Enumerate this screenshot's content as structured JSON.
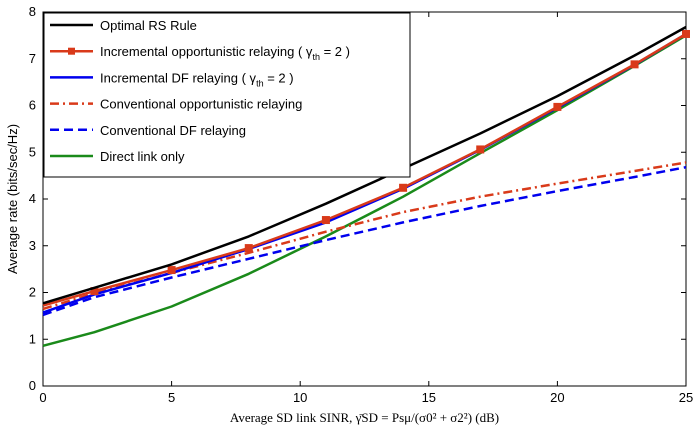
{
  "chart_data": {
    "type": "line",
    "title": "",
    "xlabel": "Average SD link SINR, γ̄SD = Psμ/(σ0² + σ2²) (dB)",
    "ylabel": "Average rate (bits/sec/Hz)",
    "xlim": [
      0,
      25
    ],
    "ylim": [
      0,
      8
    ],
    "xticks": [
      0,
      5,
      10,
      15,
      20,
      25
    ],
    "yticks": [
      0,
      1,
      2,
      3,
      4,
      5,
      6,
      7,
      8
    ],
    "grid": false,
    "legend_position": "top-left",
    "x": [
      0,
      2,
      5,
      8,
      11,
      14,
      17,
      20,
      23,
      25
    ],
    "series": [
      {
        "name": "Optimal RS Rule",
        "color": "#000000",
        "dash": "solid",
        "marker": "none",
        "values": [
          1.77,
          2.1,
          2.6,
          3.2,
          3.9,
          4.65,
          5.4,
          6.2,
          7.07,
          7.68
        ]
      },
      {
        "name": "Incremental opportunistic relaying ( γth = 2 )",
        "name_text": "Incremental opportunistic relaying ( γ",
        "name_sub": "th",
        "name_tail": " = 2 )",
        "color": "#d93a1a",
        "dash": "solid",
        "marker": "square",
        "values": [
          1.72,
          2.03,
          2.48,
          2.95,
          3.55,
          4.24,
          5.06,
          5.97,
          6.88,
          7.53
        ]
      },
      {
        "name": "Incremental DF relaying ( γth = 2 )",
        "name_text": "Incremental DF relaying ( γ",
        "name_sub": "th",
        "name_tail": " = 2 )",
        "color": "#0000ee",
        "dash": "solid",
        "marker": "none",
        "values": [
          1.57,
          1.96,
          2.42,
          2.93,
          3.5,
          4.22,
          5.05,
          5.95,
          6.87,
          7.53
        ]
      },
      {
        "name": "Conventional opportunistic relaying",
        "color": "#d93a1a",
        "dash": "dashdot",
        "marker": "none",
        "values": [
          1.65,
          1.98,
          2.42,
          2.85,
          3.3,
          3.72,
          4.05,
          4.33,
          4.6,
          4.78
        ]
      },
      {
        "name": "Conventional DF relaying",
        "color": "#0000ee",
        "dash": "dashed",
        "marker": "none",
        "values": [
          1.52,
          1.9,
          2.32,
          2.72,
          3.12,
          3.5,
          3.85,
          4.17,
          4.47,
          4.68
        ]
      },
      {
        "name": "Direct link only",
        "color": "#1a8a1a",
        "dash": "solid",
        "marker": "none",
        "values": [
          0.86,
          1.15,
          1.7,
          2.4,
          3.2,
          4.05,
          4.98,
          5.9,
          6.85,
          7.5
        ]
      }
    ]
  }
}
